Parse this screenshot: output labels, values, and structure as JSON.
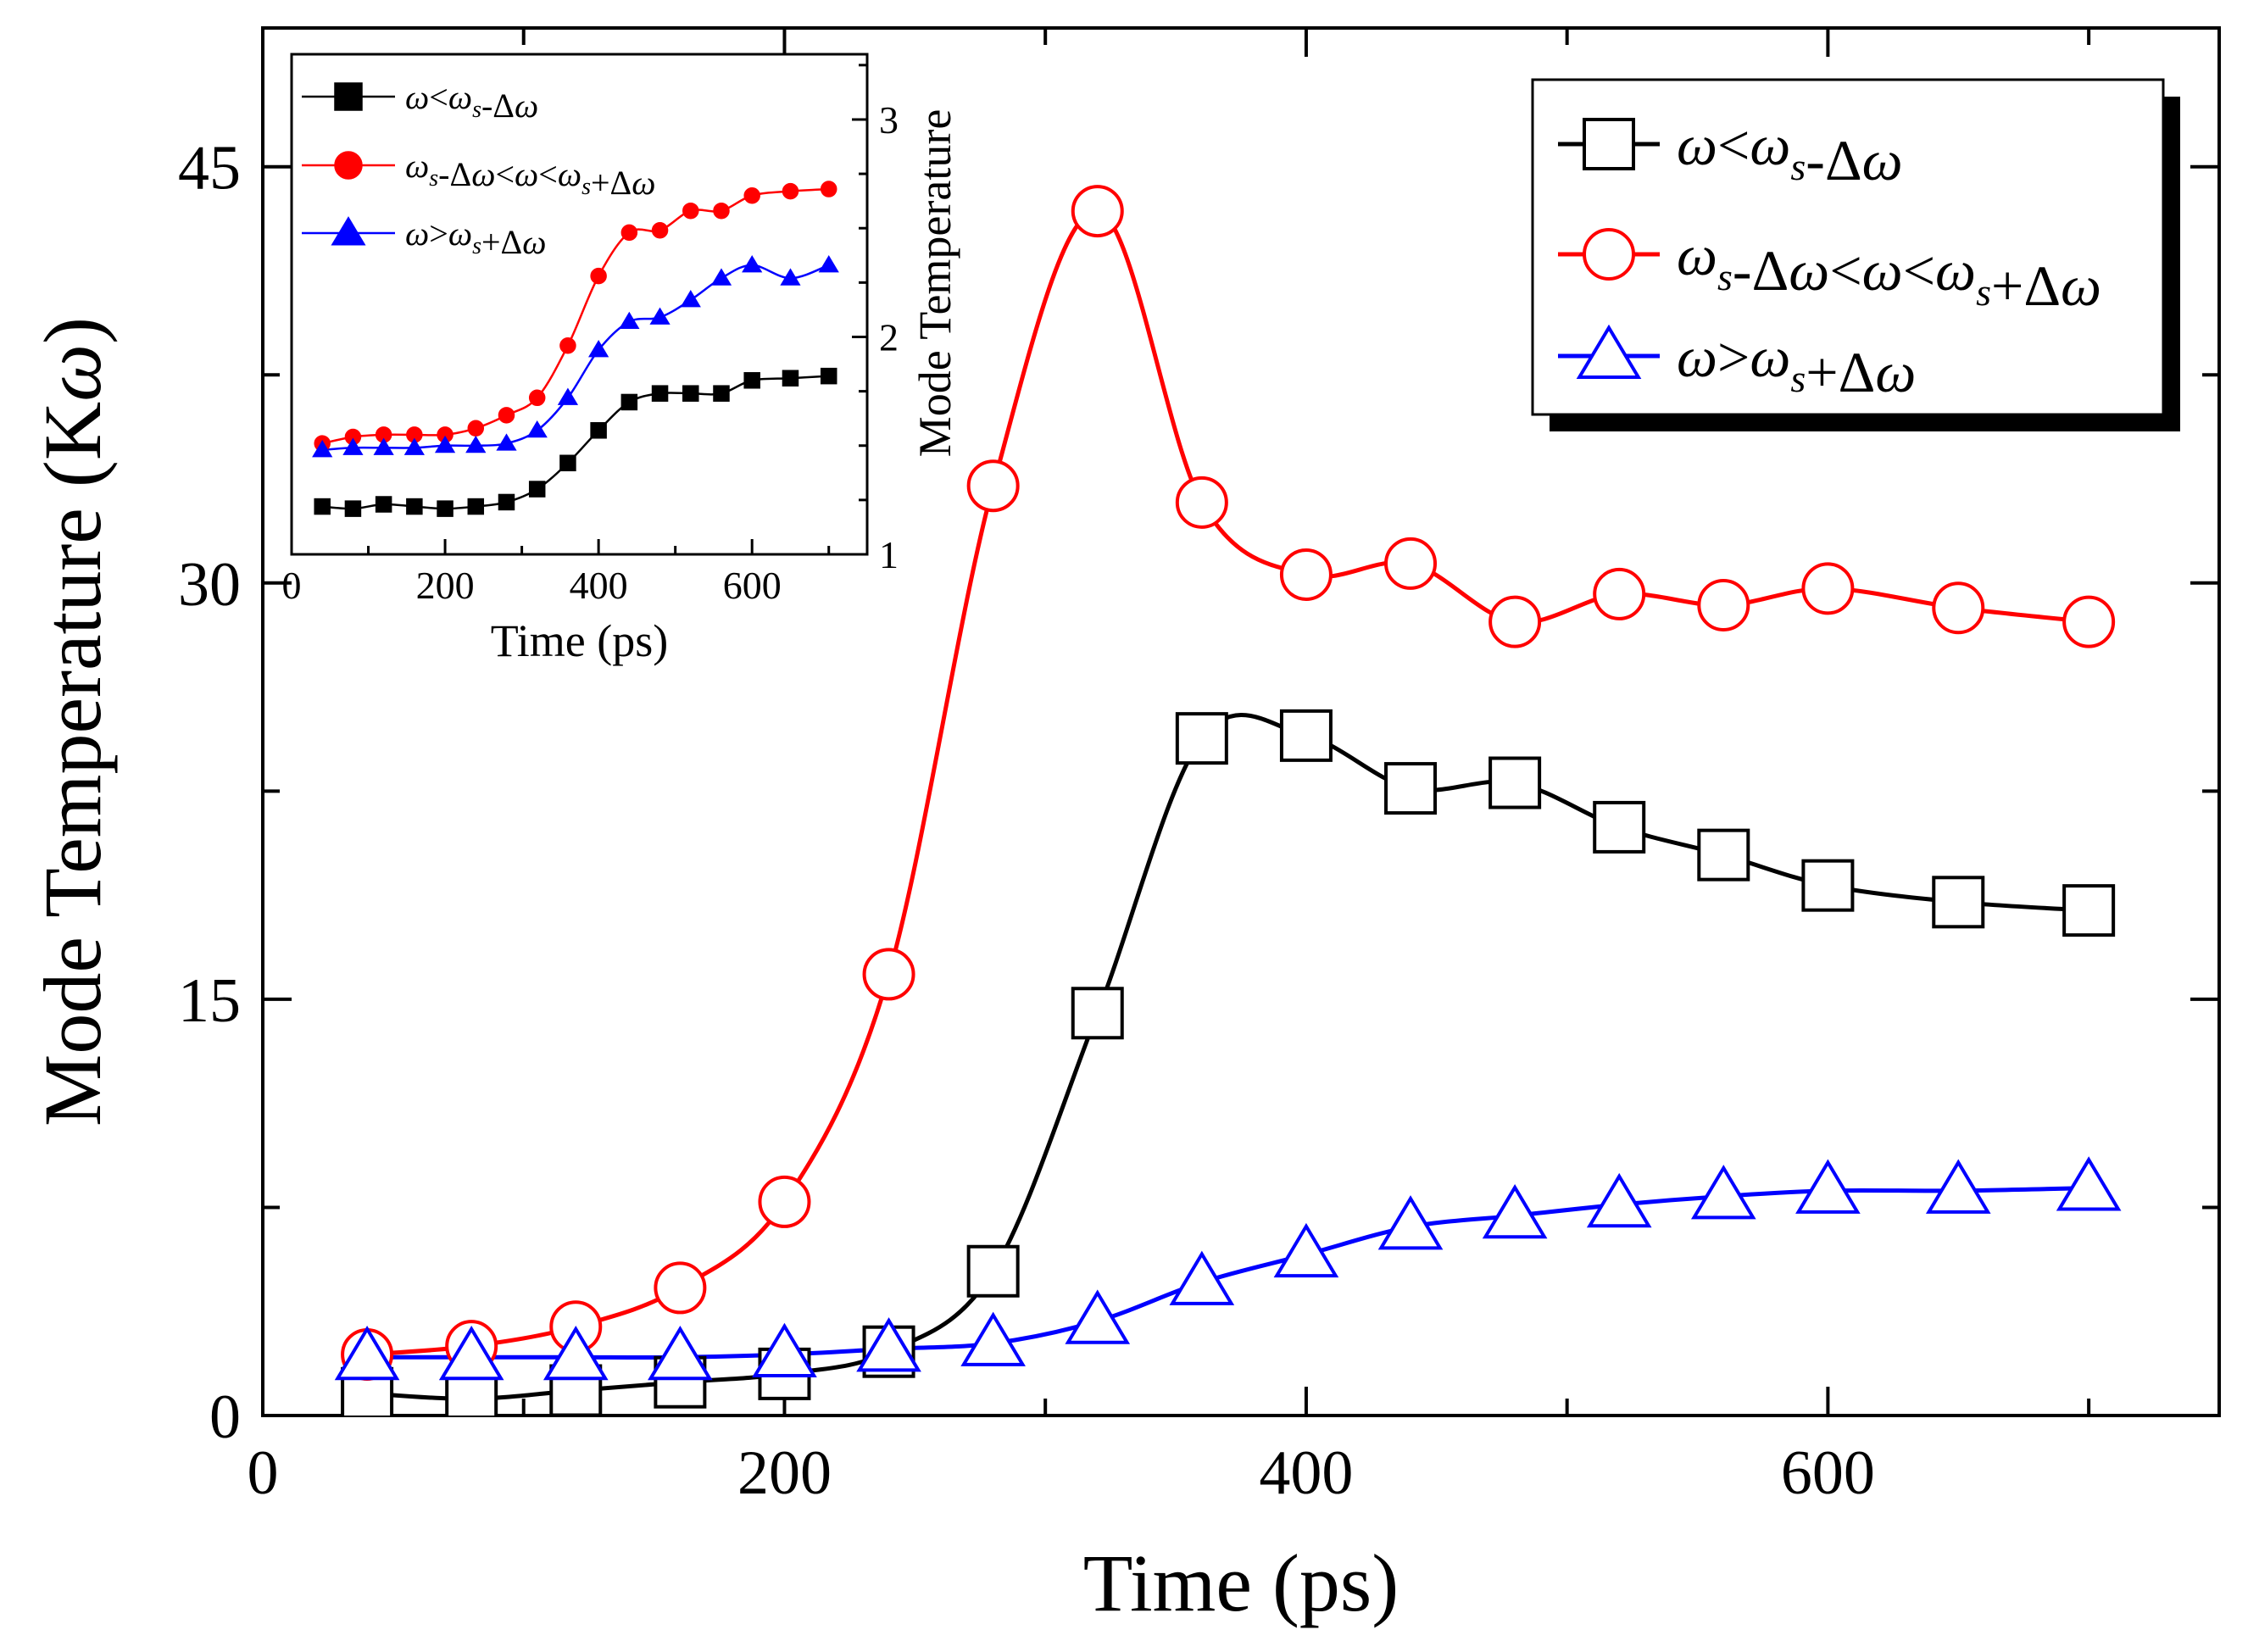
{
  "chart_data": [
    {
      "type": "line",
      "role": "main",
      "xlabel": "Time (ps)",
      "ylabel_prefix": "Mode Temperature (K",
      "ylabel_omega": "ω",
      "ylabel_suffix": ")",
      "xlim": [
        0,
        750
      ],
      "ylim": [
        0,
        50
      ],
      "xticks": [
        0,
        200,
        400,
        600
      ],
      "xtick_labels": [
        "0",
        "200",
        "400",
        "600"
      ],
      "yticks": [
        0,
        15,
        30,
        45
      ],
      "ytick_labels": [
        "0",
        "15",
        "30",
        "45"
      ],
      "legend_position": "top-right",
      "series": [
        {
          "name": "ω<ωs-Δω",
          "color": "#000000",
          "marker": "square-open",
          "x": [
            40,
            80,
            120,
            160,
            200,
            240,
            280,
            320,
            360,
            400,
            440,
            480,
            520,
            560,
            600,
            650,
            700
          ],
          "y": [
            0.8,
            0.6,
            0.9,
            1.2,
            1.5,
            2.3,
            5.2,
            14.5,
            24.4,
            24.5,
            22.6,
            22.8,
            21.2,
            20.2,
            19.1,
            18.5,
            18.2
          ]
        },
        {
          "name": "ωs-Δω<ω<ωs+Δω",
          "color": "#ff0000",
          "marker": "circle-open",
          "x": [
            40,
            80,
            120,
            160,
            200,
            240,
            280,
            320,
            360,
            400,
            440,
            480,
            520,
            560,
            600,
            650,
            700
          ],
          "y": [
            2.2,
            2.5,
            3.2,
            4.6,
            7.7,
            15.9,
            33.5,
            43.4,
            32.9,
            30.3,
            30.7,
            28.6,
            29.6,
            29.2,
            29.8,
            29.1,
            28.6
          ]
        },
        {
          "name": "ω>ωs+Δω",
          "color": "#0000ff",
          "marker": "triangle-open",
          "x": [
            40,
            80,
            120,
            160,
            200,
            240,
            280,
            320,
            360,
            400,
            440,
            480,
            520,
            560,
            600,
            650,
            700
          ],
          "y": [
            2.1,
            2.1,
            2.1,
            2.1,
            2.2,
            2.4,
            2.6,
            3.4,
            4.8,
            5.8,
            6.8,
            7.2,
            7.6,
            7.9,
            8.1,
            8.1,
            8.2
          ]
        }
      ]
    },
    {
      "type": "line",
      "role": "inset",
      "xlabel": "Time (ps)",
      "ylabel": "Mode Temperature",
      "xlim": [
        0,
        750
      ],
      "ylim": [
        1,
        3.3
      ],
      "xticks": [
        0,
        200,
        400,
        600
      ],
      "xtick_labels": [
        "0",
        "200",
        "400",
        "600"
      ],
      "yticks": [
        1,
        2,
        3
      ],
      "ytick_labels": [
        "1",
        "2",
        "3"
      ],
      "y_axis_side": "right",
      "legend_position": "top-left",
      "series": [
        {
          "name": "ω<ωs-Δω",
          "color": "#000000",
          "marker": "square-filled",
          "x": [
            40,
            80,
            120,
            160,
            200,
            240,
            280,
            320,
            360,
            400,
            440,
            480,
            520,
            560,
            600,
            650,
            700
          ],
          "y": [
            1.22,
            1.21,
            1.23,
            1.22,
            1.21,
            1.22,
            1.24,
            1.3,
            1.42,
            1.57,
            1.7,
            1.74,
            1.74,
            1.74,
            1.8,
            1.81,
            1.82
          ]
        },
        {
          "name": "ωs-Δω<ω<ωs+Δω",
          "color": "#ff0000",
          "marker": "circle-filled",
          "x": [
            40,
            80,
            120,
            160,
            200,
            240,
            280,
            320,
            360,
            400,
            440,
            480,
            520,
            560,
            600,
            650,
            700
          ],
          "y": [
            1.51,
            1.54,
            1.55,
            1.55,
            1.55,
            1.58,
            1.64,
            1.72,
            1.96,
            2.28,
            2.48,
            2.49,
            2.58,
            2.58,
            2.65,
            2.67,
            2.68
          ]
        },
        {
          "name": "ω>ωs+Δω",
          "color": "#0000ff",
          "marker": "triangle-filled",
          "x": [
            40,
            80,
            120,
            160,
            200,
            240,
            280,
            320,
            360,
            400,
            440,
            480,
            520,
            560,
            600,
            650,
            700
          ],
          "y": [
            1.48,
            1.49,
            1.49,
            1.49,
            1.5,
            1.5,
            1.51,
            1.57,
            1.72,
            1.94,
            2.07,
            2.09,
            2.17,
            2.27,
            2.33,
            2.27,
            2.33
          ]
        }
      ]
    }
  ]
}
